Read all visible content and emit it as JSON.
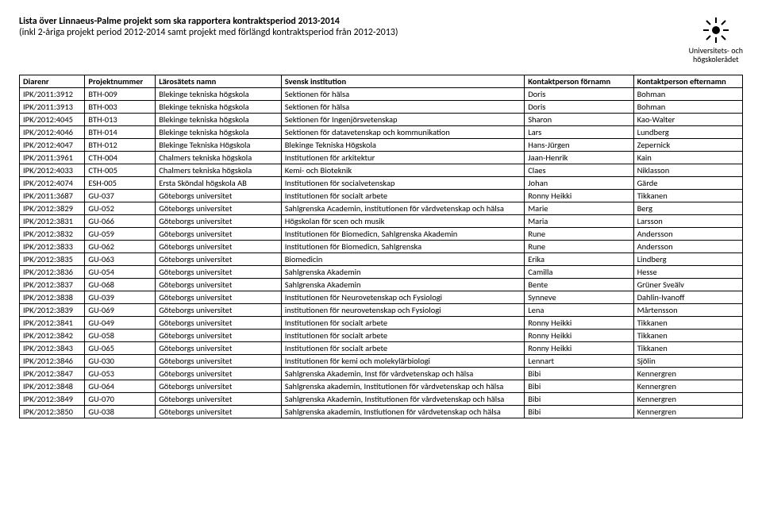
{
  "title": {
    "line1": "Lista över Linnaeus-Palme projekt som ska rapportera kontraktsperiod 2013-2014",
    "line2": "(inkl 2-åriga projekt period 2012-2014 samt projekt med förlängd kontraktsperiod från 2012-2013)"
  },
  "logo": {
    "line1": "Universitets- och",
    "line2": "högskolerådet"
  },
  "columns": [
    "Diarenr",
    "Projektnummer",
    "Lärosätets namn",
    "Svensk institution",
    "Kontaktperson förnamn",
    "Kontaktperson efternamn"
  ],
  "rows": [
    [
      "IPK/2011:3912",
      "BTH-009",
      "Blekinge tekniska högskola",
      "Sektionen för hälsa",
      "Doris",
      "Bohman"
    ],
    [
      "IPK/2011:3913",
      "BTH-003",
      "Blekinge tekniska högskola",
      "Sektionen för hälsa",
      "Doris",
      "Bohman"
    ],
    [
      "IPK/2012:4045",
      "BTH-013",
      "Blekinge tekniska högskola",
      "Sektionen för Ingenjörsvetenskap",
      "Sharon",
      "Kao-Walter"
    ],
    [
      "IPK/2012:4046",
      "BTH-014",
      "Blekinge tekniska högskola",
      "Sektionen för datavetenskap och kommunikation",
      "Lars",
      "Lundberg"
    ],
    [
      "IPK/2012:4047",
      "BTH-012",
      "Blekinge Tekniska Högskola",
      "Blekinge Tekniska Högskola",
      "Hans-Jürgen",
      "Zepernick"
    ],
    [
      "IPK/2011:3961",
      "CTH-004",
      "Chalmers tekniska högskola",
      "Institutionen för arkitektur",
      "Jaan-Henrik",
      "Kain"
    ],
    [
      "IPK/2012:4033",
      "CTH-005",
      "Chalmers tekniska högskola",
      "Kemi- och Bioteknik",
      "Claes",
      "Niklasson"
    ],
    [
      "IPK/2012:4074",
      "ESH-005",
      "Ersta Sköndal högskola AB",
      "Institutionen för socialvetenskap",
      "Johan",
      "Gärde"
    ],
    [
      "IPK/2011:3687",
      "GU-037",
      "Göteborgs universitet",
      "Institutionen för socialt arbete",
      "Ronny Heikki",
      "Tikkanen"
    ],
    [
      "IPK/2012:3829",
      "GU-052",
      "Göteborgs universitet",
      "Sahlgrenska Academin, institutionen för vårdvetenskap och hälsa",
      "Marie",
      "Berg"
    ],
    [
      "IPK/2012:3831",
      "GU-066",
      "Göteborgs universitet",
      "Högskolan för scen och musik",
      "Maria",
      "Larsson"
    ],
    [
      "IPK/2012:3832",
      "GU-059",
      "Göteborgs universitet",
      "Institutionen för Biomedicn, Sahlgrenska Akademin",
      "Rune",
      "Andersson"
    ],
    [
      "IPK/2012:3833",
      "GU-062",
      "Göteborgs universitet",
      "Institutionen för Biomedicn, Sahlgrenska",
      "Rune",
      "Andersson"
    ],
    [
      "IPK/2012:3835",
      "GU-063",
      "Göteborgs universitet",
      "Biomedicin",
      "Erika",
      "Lindberg"
    ],
    [
      "IPK/2012:3836",
      "GU-054",
      "Göteborgs universitet",
      "Sahlgrenska Akademin",
      "Camilla",
      "Hesse"
    ],
    [
      "IPK/2012:3837",
      "GU-068",
      "Göteborgs universitet",
      "Sahlgrenska Akademin",
      "Bente",
      "Grüner Sveälv"
    ],
    [
      "IPK/2012:3838",
      "GU-039",
      "Göteborgs universitet",
      "Institutionen för Neurovetenskap och Fysiologi",
      "Synneve",
      "Dahlin-Ivanoff"
    ],
    [
      "IPK/2012:3839",
      "GU-069",
      "Göteborgs universitet",
      "institutionen för neurovetenskap och Fysiologi",
      "Lena",
      "Mårtensson"
    ],
    [
      "IPK/2012:3841",
      "GU-049",
      "Göteborgs universitet",
      "Institutionen för socialt arbete",
      "Ronny Heikki",
      "Tikkanen"
    ],
    [
      "IPK/2012:3842",
      "GU-058",
      "Göteborgs universitet",
      "Institutionen för socialt arbete",
      "Ronny Heikki",
      "Tikkanen"
    ],
    [
      "IPK/2012:3843",
      "GU-065",
      "Göteborgs universitet",
      "Institutionen för socialt arbete",
      "Ronny Heikki",
      "Tikkanen"
    ],
    [
      "IPK/2012:3846",
      "GU-030",
      "Göteborgs universitet",
      "Institutionen för kemi och molekylärbiologi",
      "Lennart",
      "Sjölin"
    ],
    [
      "IPK/2012:3847",
      "GU-053",
      "Göteborgs universitet",
      "Sahlgrenska Akademin, Inst för vårdvetenskap och hälsa",
      "Bibi",
      "Kennergren"
    ],
    [
      "IPK/2012:3848",
      "GU-064",
      "Göteborgs universitet",
      "Sahlgrenska akademin, Institutionen för vårdvetenskap och hälsa",
      "Bibi",
      "Kennergren"
    ],
    [
      "IPK/2012:3849",
      "GU-070",
      "Göteborgs universitet",
      "Sahlgrenska Akademin, Institutionen för vårdvetenskap och hälsa",
      "Bibi",
      "Kennergren"
    ],
    [
      "IPK/2012:3850",
      "GU-038",
      "Göteborgs universitet",
      "Sahlgrenska akademin, Instiutionen för vårdvetenskap och hälsa",
      "Bibi",
      "Kennergren"
    ]
  ]
}
